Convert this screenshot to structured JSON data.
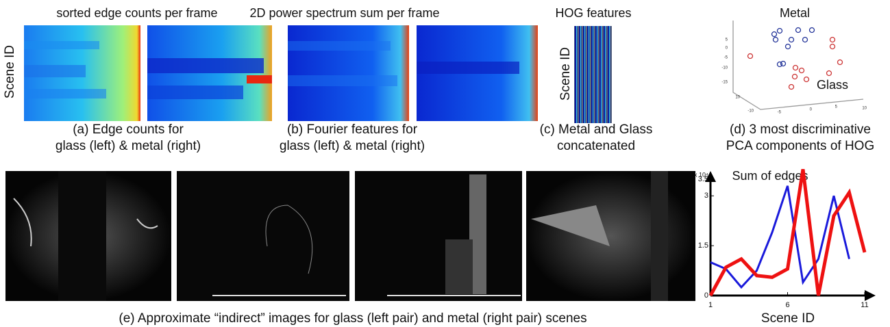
{
  "panels": {
    "a": {
      "title": "sorted edge counts per frame",
      "y_label": "Scene ID",
      "caption": [
        "(a) Edge counts for",
        "glass (left) & metal (right)"
      ]
    },
    "b": {
      "title": "2D power spectrum sum per frame",
      "caption": [
        "(b) Fourier features for",
        "glass (left) & metal (right)"
      ]
    },
    "c": {
      "title": "HOG features",
      "y_label": "Scene ID",
      "caption": [
        "(c) Metal and Glass",
        "concatenated"
      ]
    },
    "d": {
      "labels": [
        "Metal",
        "Glass"
      ],
      "axis_ticks": [
        "5",
        "0",
        "-5",
        "-10",
        "-15",
        "10",
        "-10",
        "-5",
        "0",
        "5",
        "10"
      ],
      "caption": [
        "(d) 3 most discriminative",
        "PCA components of HOG"
      ]
    },
    "e": {
      "caption": "(e) Approximate “indirect” images for glass (left pair) and metal (right pair) scenes"
    }
  },
  "chart_data": {
    "type": "line",
    "title": "Sum of edges",
    "x_label": "Scene ID",
    "y_multiplier": "x 10⁴",
    "x": [
      1,
      2,
      3,
      4,
      5,
      6,
      7,
      8,
      9,
      10,
      11
    ],
    "xlim": [
      1,
      11
    ],
    "xticks": [
      1,
      6,
      11
    ],
    "ylim": [
      0,
      3.5
    ],
    "yticks": [
      0,
      1.5,
      3,
      3.5
    ],
    "series": [
      {
        "color": "#1a1adb",
        "values": [
          1.0,
          0.8,
          0.25,
          0.75,
          1.9,
          3.3,
          0.4,
          1.1,
          3.0,
          1.1,
          null
        ]
      },
      {
        "color": "#ee1111",
        "values": [
          0,
          0.85,
          1.1,
          0.6,
          0.55,
          0.8,
          3.8,
          0,
          2.4,
          3.1,
          1.3
        ]
      }
    ]
  }
}
